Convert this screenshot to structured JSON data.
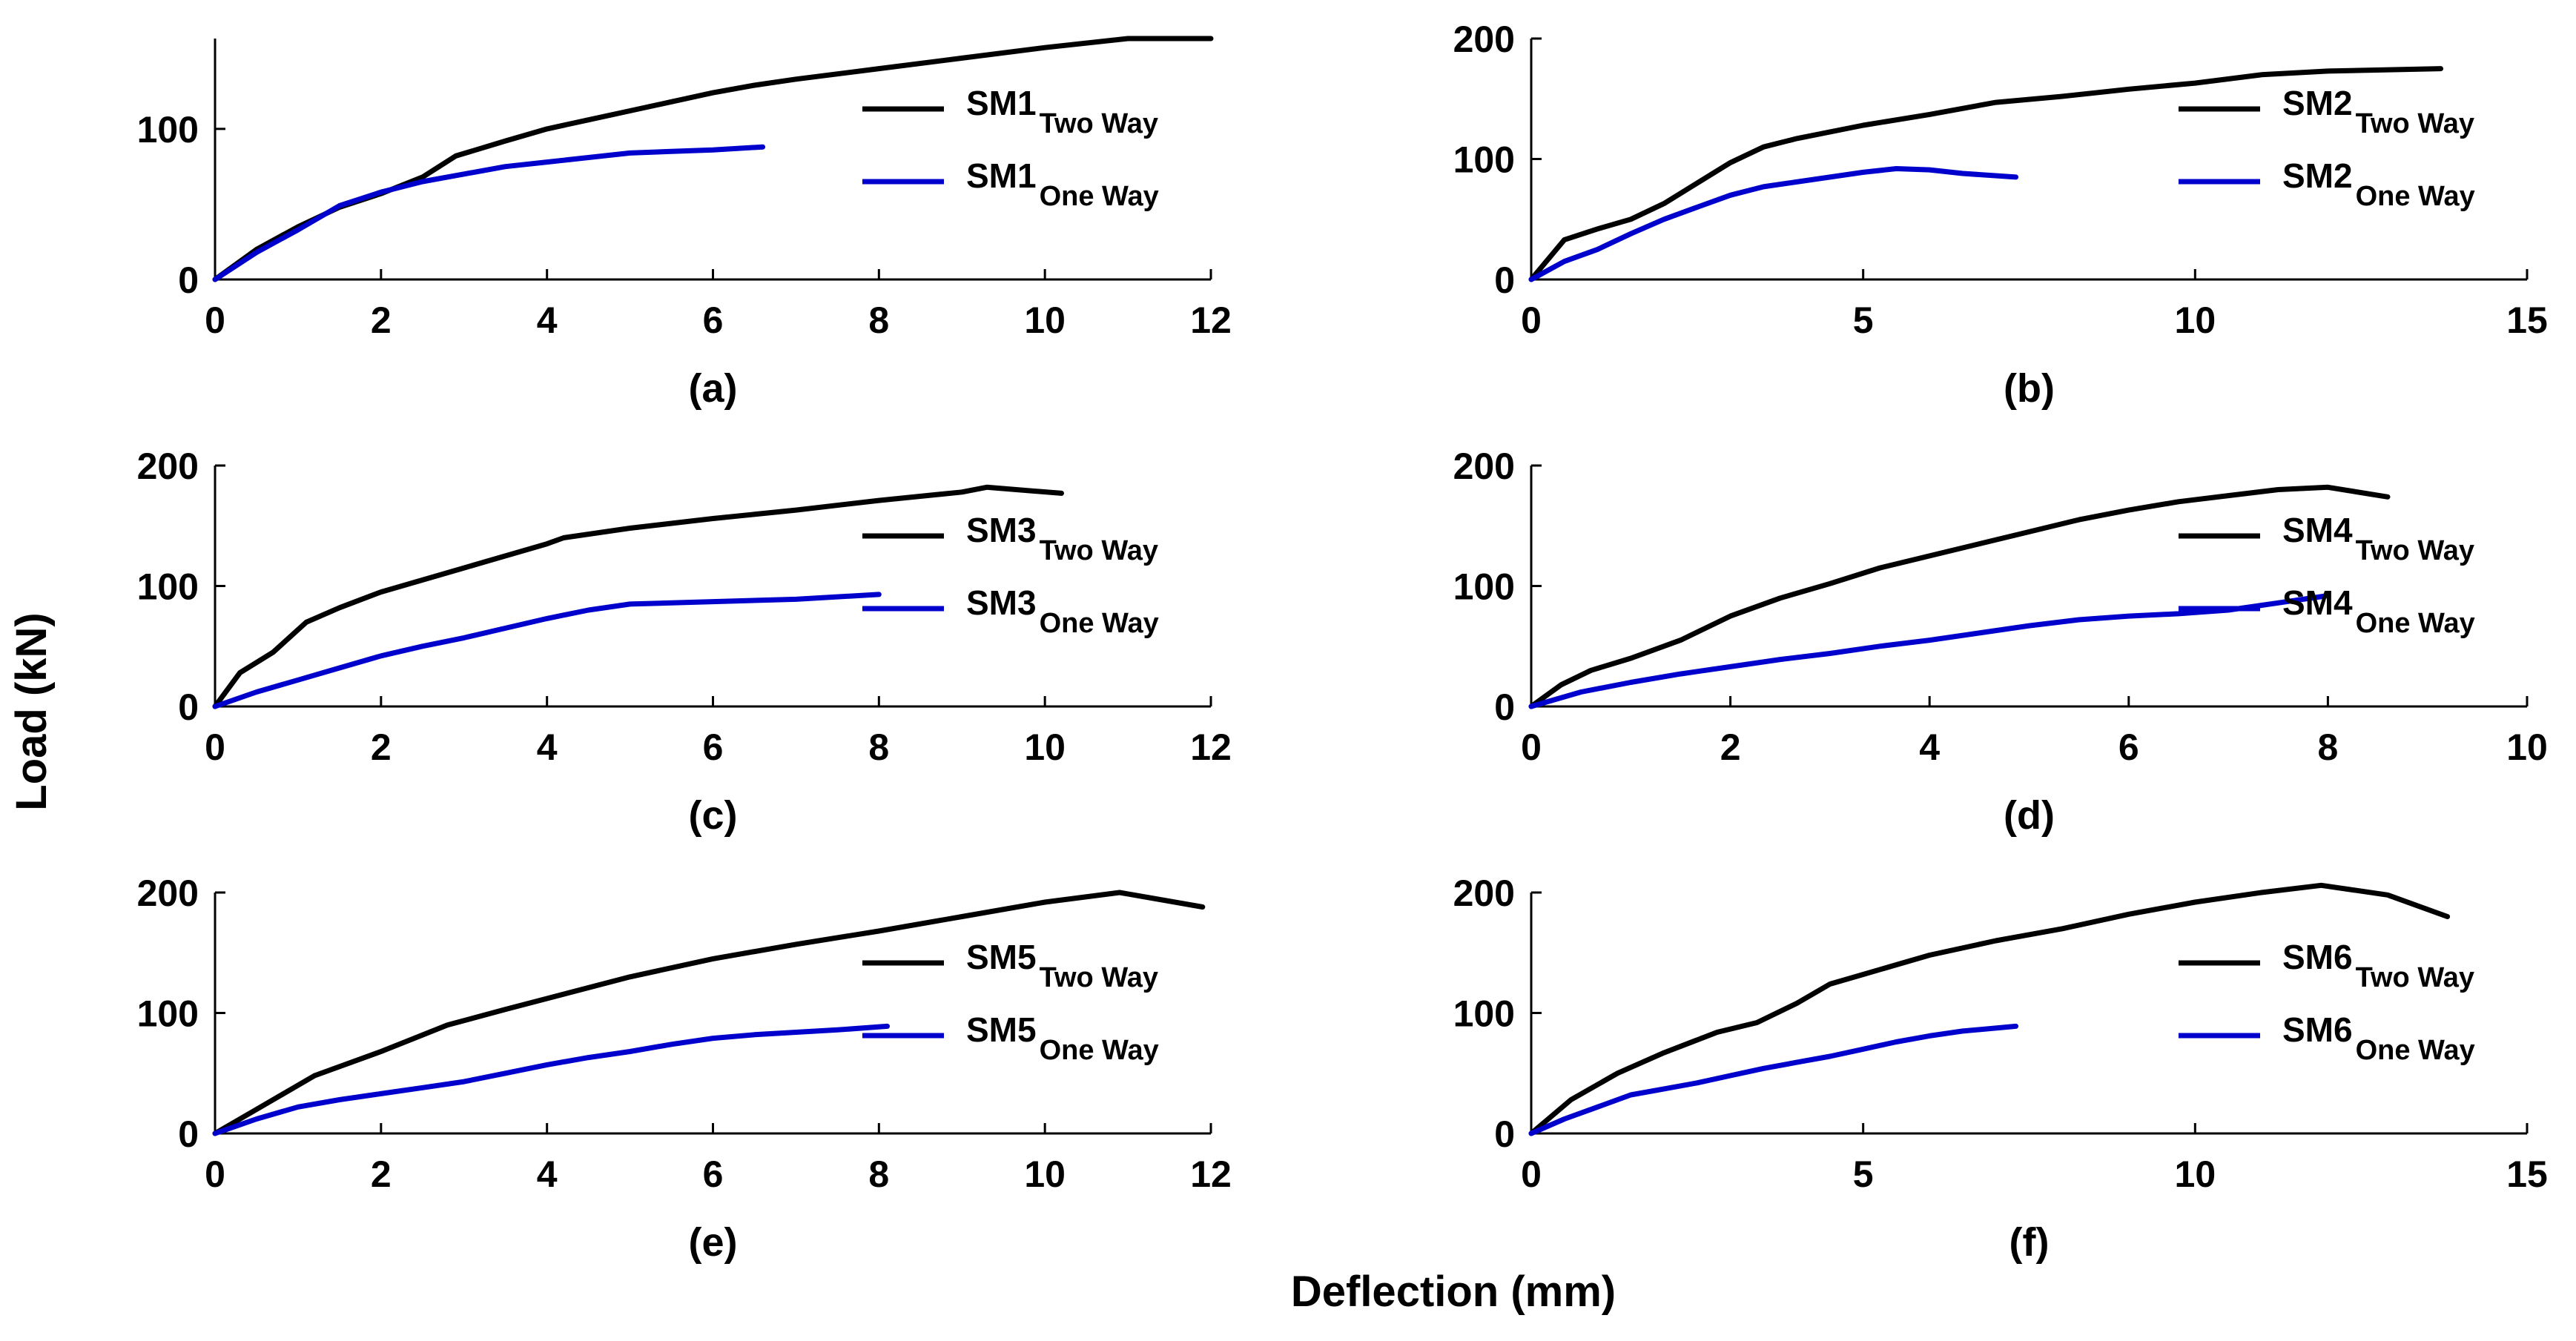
{
  "figure": {
    "ylabel": "Load (kN)",
    "xlabel": "Deflection (mm)",
    "colors": {
      "two_way": "#000000",
      "one_way": "#0000cc",
      "axis": "#000000"
    }
  },
  "chart_data": [
    {
      "type": "line",
      "panel_label": "(a)",
      "xlim": [
        0,
        12
      ],
      "ylim": [
        0,
        160
      ],
      "xticks": [
        0,
        2,
        4,
        6,
        8,
        10,
        12
      ],
      "yticks": [
        0,
        100
      ],
      "legend_position": "right",
      "series": [
        {
          "base": "SM1",
          "sub": "Two Way",
          "name": "SM1 Two Way",
          "x": [
            0,
            0.5,
            1,
            1.5,
            2,
            2.5,
            2.9,
            3.5,
            4,
            4.5,
            5,
            5.5,
            6,
            6.5,
            7,
            8,
            9,
            10,
            11,
            12
          ],
          "y": [
            0,
            20,
            35,
            48,
            57,
            68,
            82,
            92,
            100,
            106,
            112,
            118,
            124,
            129,
            133,
            140,
            147,
            154,
            160,
            160
          ]
        },
        {
          "base": "SM1",
          "sub": "One Way",
          "name": "SM1 One Way",
          "x": [
            0,
            0.5,
            1,
            1.5,
            2,
            2.5,
            3,
            3.5,
            4,
            4.5,
            5,
            5.5,
            6,
            6.6
          ],
          "y": [
            0,
            18,
            33,
            49,
            58,
            65,
            70,
            75,
            78,
            81,
            84,
            85,
            86,
            88
          ]
        }
      ]
    },
    {
      "type": "line",
      "panel_label": "(b)",
      "xlim": [
        0,
        15
      ],
      "ylim": [
        0,
        200
      ],
      "xticks": [
        0,
        5,
        10,
        15
      ],
      "yticks": [
        0,
        100,
        200
      ],
      "legend_position": "right",
      "series": [
        {
          "base": "SM2",
          "sub": "Two Way",
          "name": "SM2 Two Way",
          "x": [
            0,
            0.5,
            1,
            1.5,
            2,
            2.5,
            3,
            3.5,
            4,
            5,
            6,
            7,
            8,
            9,
            10,
            11,
            12,
            13.7
          ],
          "y": [
            0,
            33,
            42,
            50,
            63,
            80,
            97,
            110,
            117,
            128,
            137,
            147,
            152,
            158,
            163,
            170,
            173,
            175
          ]
        },
        {
          "base": "SM2",
          "sub": "One Way",
          "name": "SM2 One Way",
          "x": [
            0,
            0.5,
            1,
            1.5,
            2,
            2.5,
            3,
            3.5,
            4,
            4.5,
            5,
            5.5,
            6,
            6.5,
            7.3
          ],
          "y": [
            0,
            15,
            25,
            38,
            50,
            60,
            70,
            77,
            81,
            85,
            89,
            92,
            91,
            88,
            85
          ]
        }
      ]
    },
    {
      "type": "line",
      "panel_label": "(c)",
      "xlim": [
        0,
        12
      ],
      "ylim": [
        0,
        200
      ],
      "xticks": [
        0,
        2,
        4,
        6,
        8,
        10,
        12
      ],
      "yticks": [
        0,
        100,
        200
      ],
      "legend_position": "right",
      "series": [
        {
          "base": "SM3",
          "sub": "Two Way",
          "name": "SM3 Two Way",
          "x": [
            0,
            0.3,
            0.7,
            1.1,
            1.5,
            2,
            3,
            4,
            4.2,
            5,
            6,
            7,
            8,
            9,
            9.3,
            10.2
          ],
          "y": [
            0,
            28,
            45,
            70,
            82,
            95,
            115,
            135,
            140,
            148,
            156,
            163,
            171,
            178,
            182,
            177
          ]
        },
        {
          "base": "SM3",
          "sub": "One Way",
          "name": "SM3 One Way",
          "x": [
            0,
            0.5,
            1,
            1.5,
            2,
            2.5,
            3,
            3.5,
            4,
            4.5,
            5,
            6,
            7,
            8
          ],
          "y": [
            0,
            12,
            22,
            32,
            42,
            50,
            57,
            65,
            73,
            80,
            85,
            87,
            89,
            93
          ]
        }
      ]
    },
    {
      "type": "line",
      "panel_label": "(d)",
      "xlim": [
        0,
        10
      ],
      "ylim": [
        0,
        200
      ],
      "xticks": [
        0,
        2,
        4,
        6,
        8,
        10
      ],
      "yticks": [
        0,
        100,
        200
      ],
      "legend_position": "right",
      "series": [
        {
          "base": "SM4",
          "sub": "Two Way",
          "name": "SM4 Two Way",
          "x": [
            0,
            0.3,
            0.6,
            1,
            1.5,
            2,
            2.5,
            3,
            3.5,
            4,
            4.5,
            5,
            5.5,
            6,
            6.5,
            7,
            7.5,
            8,
            8.6
          ],
          "y": [
            0,
            18,
            30,
            40,
            55,
            75,
            90,
            102,
            115,
            125,
            135,
            145,
            155,
            163,
            170,
            175,
            180,
            182,
            174
          ]
        },
        {
          "base": "SM4",
          "sub": "One Way",
          "name": "SM4 One Way",
          "x": [
            0,
            0.5,
            1,
            1.5,
            2,
            2.5,
            3,
            3.5,
            4,
            4.5,
            5,
            5.5,
            6,
            6.5,
            7,
            7.5,
            8
          ],
          "y": [
            0,
            12,
            20,
            27,
            33,
            39,
            44,
            50,
            55,
            61,
            67,
            72,
            75,
            77,
            80,
            86,
            92
          ]
        }
      ]
    },
    {
      "type": "line",
      "panel_label": "(e)",
      "xlim": [
        0,
        12
      ],
      "ylim": [
        0,
        200
      ],
      "xticks": [
        0,
        2,
        4,
        6,
        8,
        10,
        12
      ],
      "yticks": [
        0,
        100,
        200
      ],
      "legend_position": "right",
      "series": [
        {
          "base": "SM5",
          "sub": "Two Way",
          "name": "SM5 Two Way",
          "x": [
            0,
            0.5,
            1.2,
            2,
            2.8,
            3.5,
            4,
            5,
            6,
            7,
            8,
            9,
            10,
            10.9,
            11.9
          ],
          "y": [
            0,
            20,
            48,
            68,
            90,
            103,
            112,
            130,
            145,
            157,
            168,
            180,
            192,
            200,
            188
          ]
        },
        {
          "base": "SM5",
          "sub": "One Way",
          "name": "SM5 One Way",
          "x": [
            0,
            0.5,
            1,
            1.5,
            2,
            2.5,
            3,
            3.5,
            4,
            4.5,
            5,
            5.5,
            6,
            6.5,
            7,
            7.5,
            8.1
          ],
          "y": [
            0,
            12,
            22,
            28,
            33,
            38,
            43,
            50,
            57,
            63,
            68,
            74,
            79,
            82,
            84,
            86,
            89
          ]
        }
      ]
    },
    {
      "type": "line",
      "panel_label": "(f)",
      "xlim": [
        0,
        15
      ],
      "ylim": [
        0,
        200
      ],
      "xticks": [
        0,
        5,
        10,
        15
      ],
      "yticks": [
        0,
        100,
        200
      ],
      "legend_position": "right",
      "series": [
        {
          "base": "SM6",
          "sub": "Two Way",
          "name": "SM6 Two Way",
          "x": [
            0,
            0.6,
            1.3,
            2,
            2.8,
            3.4,
            4,
            4.5,
            5,
            6,
            7,
            8,
            9,
            10,
            11,
            11.9,
            12.9,
            13.8
          ],
          "y": [
            0,
            28,
            50,
            67,
            84,
            92,
            108,
            124,
            132,
            148,
            160,
            170,
            182,
            192,
            200,
            206,
            198,
            180
          ]
        },
        {
          "base": "SM6",
          "sub": "One Way",
          "name": "SM6 One Way",
          "x": [
            0,
            0.5,
            1,
            1.5,
            2,
            2.5,
            3,
            3.5,
            4,
            4.5,
            5,
            5.5,
            6,
            6.5,
            7.3
          ],
          "y": [
            0,
            12,
            22,
            32,
            37,
            42,
            48,
            54,
            59,
            64,
            70,
            76,
            81,
            85,
            89
          ]
        }
      ]
    }
  ]
}
